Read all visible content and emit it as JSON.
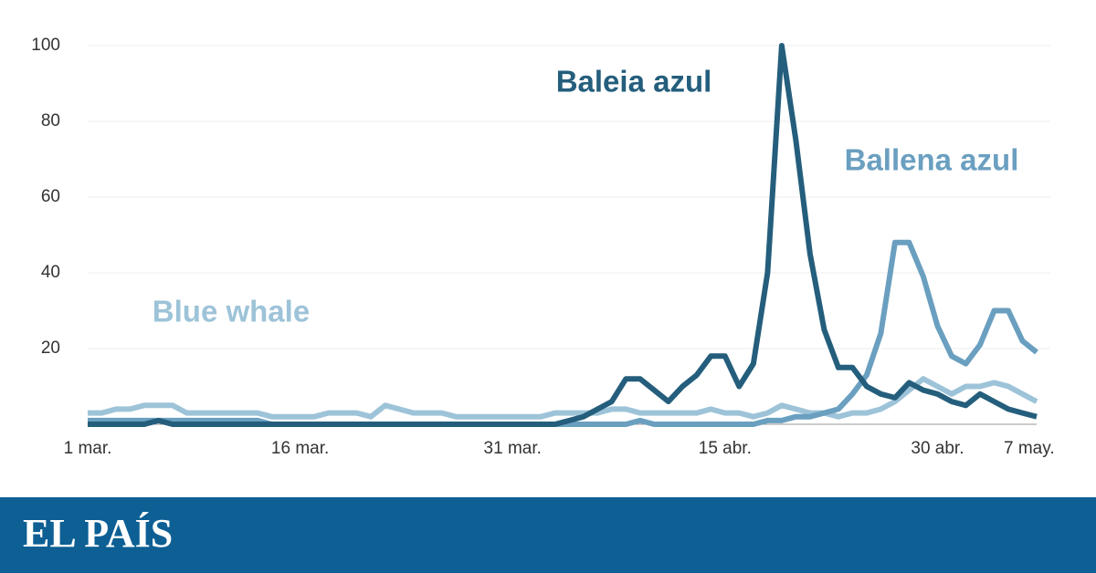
{
  "chart_data": {
    "type": "line",
    "categories": [
      "1 mar.",
      null,
      null,
      null,
      null,
      null,
      null,
      null,
      null,
      null,
      null,
      null,
      null,
      null,
      null,
      "16 mar.",
      null,
      null,
      null,
      null,
      null,
      null,
      null,
      null,
      null,
      null,
      null,
      null,
      null,
      null,
      "31 mar.",
      null,
      null,
      null,
      null,
      null,
      null,
      null,
      null,
      null,
      null,
      null,
      null,
      null,
      null,
      "15 abr.",
      null,
      null,
      null,
      null,
      null,
      null,
      null,
      null,
      null,
      null,
      null,
      null,
      null,
      null,
      "30 abr.",
      null,
      null,
      null,
      null,
      null,
      null,
      "7 may."
    ],
    "series": [
      {
        "name": "Blue whale",
        "color": "#9dc3d8",
        "values": [
          3,
          3,
          4,
          4,
          5,
          5,
          5,
          3,
          3,
          3,
          3,
          3,
          3,
          2,
          2,
          2,
          2,
          3,
          3,
          3,
          2,
          5,
          4,
          3,
          3,
          3,
          2,
          2,
          2,
          2,
          2,
          2,
          2,
          3,
          3,
          3,
          3,
          4,
          4,
          3,
          3,
          3,
          3,
          3,
          4,
          3,
          3,
          2,
          3,
          5,
          4,
          3,
          3,
          2,
          3,
          3,
          4,
          6,
          9,
          12,
          10,
          8,
          10,
          10,
          11,
          10,
          8,
          6
        ]
      },
      {
        "name": "Ballena azul",
        "color": "#6a9fc0",
        "values": [
          1,
          1,
          1,
          1,
          1,
          1,
          1,
          1,
          1,
          1,
          1,
          1,
          1,
          0,
          0,
          0,
          0,
          0,
          0,
          0,
          0,
          0,
          0,
          0,
          0,
          0,
          0,
          0,
          0,
          0,
          0,
          0,
          0,
          0,
          0,
          0,
          0,
          0,
          0,
          1,
          0,
          0,
          0,
          0,
          0,
          0,
          0,
          0,
          1,
          1,
          2,
          2,
          3,
          4,
          8,
          13,
          24,
          48,
          48,
          39,
          26,
          18,
          16,
          21,
          30,
          30,
          22,
          19
        ]
      },
      {
        "name": "Baleia azul",
        "color": "#245e7c",
        "values": [
          0,
          0,
          0,
          0,
          0,
          1,
          0,
          0,
          0,
          0,
          0,
          0,
          0,
          0,
          0,
          0,
          0,
          0,
          0,
          0,
          0,
          0,
          0,
          0,
          0,
          0,
          0,
          0,
          0,
          0,
          0,
          0,
          0,
          0,
          1,
          2,
          4,
          6,
          12,
          12,
          9,
          6,
          10,
          13,
          18,
          18,
          10,
          16,
          40,
          100,
          75,
          45,
          25,
          15,
          15,
          10,
          8,
          7,
          11,
          9,
          8,
          6,
          5,
          8,
          6,
          4,
          3,
          2
        ]
      }
    ],
    "ylim": [
      0,
      100
    ],
    "yticks": [
      20,
      40,
      60,
      80,
      100
    ],
    "grid": true
  },
  "branding": {
    "logo": "EL PAÍS"
  }
}
